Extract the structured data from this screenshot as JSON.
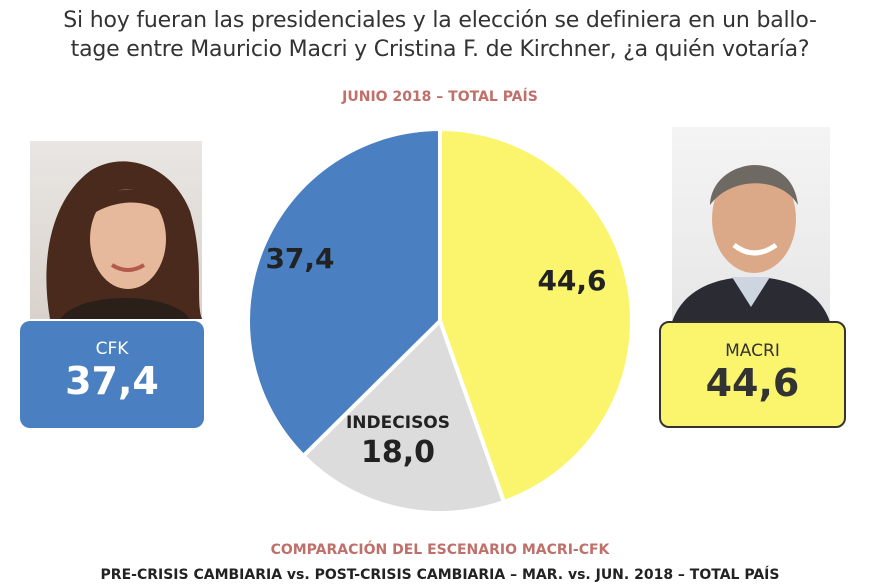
{
  "header": {
    "question_line1": "Si hoy fueran las presidenciales y la elección se definiera en un ballo-",
    "question_line2": "tage entre Mauricio Macri y Cristina F. de Kirchner, ¿a quién votaría?",
    "subtitle": "JUNIO 2018 – TOTAL PAÍS"
  },
  "cards": {
    "cfk": {
      "label": "CFK",
      "value": "37,4"
    },
    "macri": {
      "label": "MACRI",
      "value": "44,6"
    }
  },
  "footer": {
    "line1": "COMPARACIÓN DEL ESCENARIO MACRI-CFK",
    "line2": "PRE-CRISIS CAMBIARIA vs. POST-CRISIS CAMBIARIA – MAR. vs. JUN. 2018 – TOTAL PAÍS"
  },
  "colors": {
    "cfk": "#4a7fc1",
    "macri": "#fbf56e",
    "indecisos": "#dcdcdc"
  },
  "chart_data": {
    "type": "pie",
    "title": "",
    "slices": [
      {
        "name": "",
        "value": 44.6,
        "label": "44,6",
        "color": "#fbf56e"
      },
      {
        "name": "INDECISOS",
        "value": 18.0,
        "label": "18,0",
        "color": "#dcdcdc"
      },
      {
        "name": "",
        "value": 37.4,
        "label": "37,4",
        "color": "#4a7fc1"
      }
    ]
  }
}
